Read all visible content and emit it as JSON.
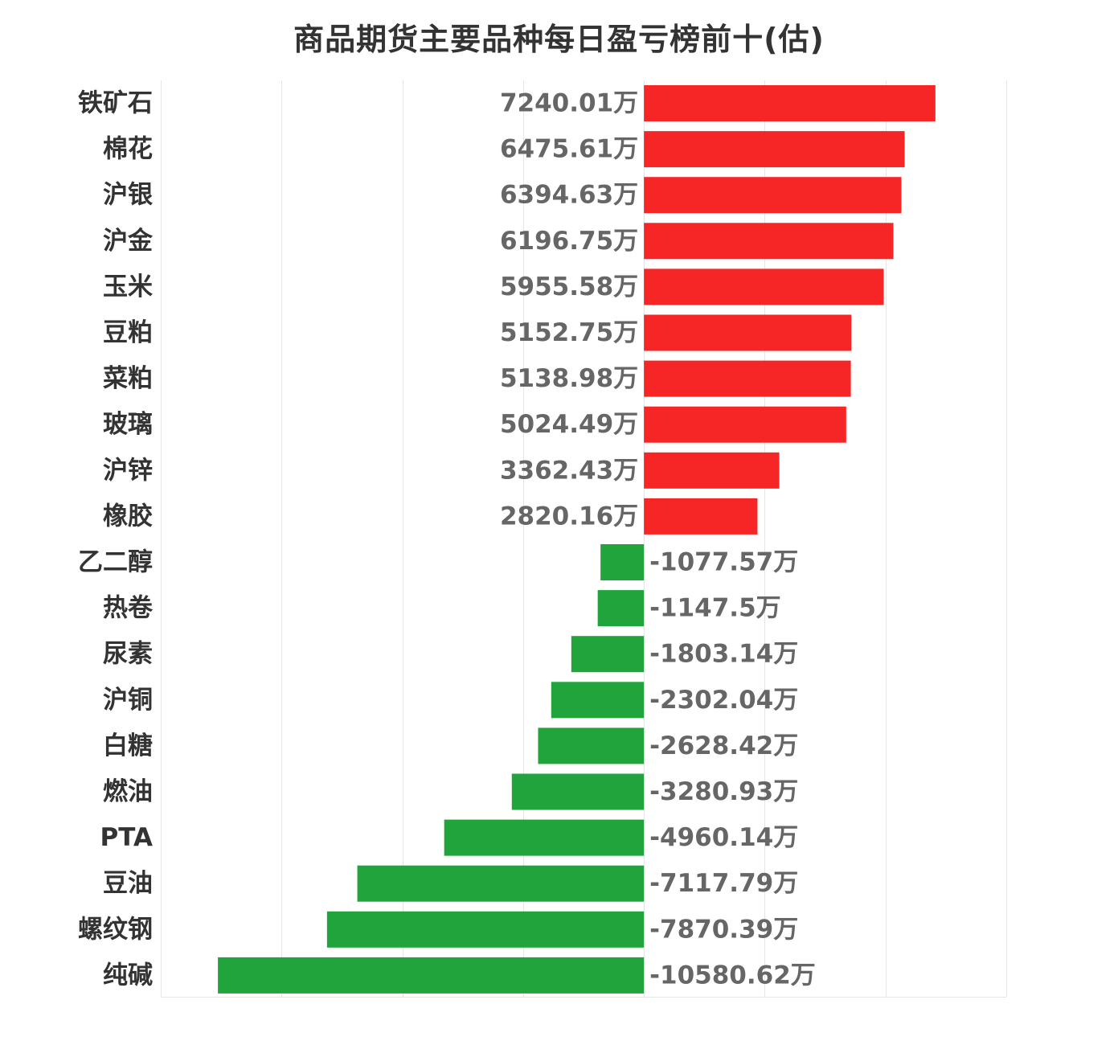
{
  "chart_data": {
    "type": "bar",
    "orientation": "horizontal",
    "title": "商品期货主要品种每日盈亏榜前十(估)",
    "unit": "万",
    "categories": [
      "铁矿石",
      "棉花",
      "沪银",
      "沪金",
      "玉米",
      "豆粕",
      "菜粕",
      "玻璃",
      "沪锌",
      "橡胶",
      "乙二醇",
      "热卷",
      "尿素",
      "沪铜",
      "白糖",
      "燃油",
      "PTA",
      "豆油",
      "螺纹钢",
      "纯碱"
    ],
    "values": [
      7240.01,
      6475.61,
      6394.63,
      6196.75,
      5955.58,
      5152.75,
      5138.98,
      5024.49,
      3362.43,
      2820.16,
      -1077.57,
      -1147.5,
      -1803.14,
      -2302.04,
      -2628.42,
      -3280.93,
      -4960.14,
      -7117.79,
      -7870.39,
      -10580.62
    ],
    "value_labels": [
      "7240.01万",
      "6475.61万",
      "6394.63万",
      "6196.75万",
      "5955.58万",
      "5152.75万",
      "5138.98万",
      "5024.49万",
      "3362.43万",
      "2820.16万",
      "-1077.57万",
      "-1147.5万",
      "-1803.14万",
      "-2302.04万",
      "-2628.42万",
      "-3280.93万",
      "-4960.14万",
      "-7117.79万",
      "-7870.39万",
      "-10580.62万"
    ],
    "xlim": [
      -12000,
      9000
    ],
    "x_gridlines": [
      -12000,
      -9000,
      -6000,
      -3000,
      0,
      3000,
      6000,
      9000
    ],
    "grid": true,
    "colors": {
      "positive": "#f72626",
      "negative": "#21a43b",
      "grid": "#e6e6e6",
      "category_text": "#333333",
      "value_text": "#666666"
    }
  }
}
